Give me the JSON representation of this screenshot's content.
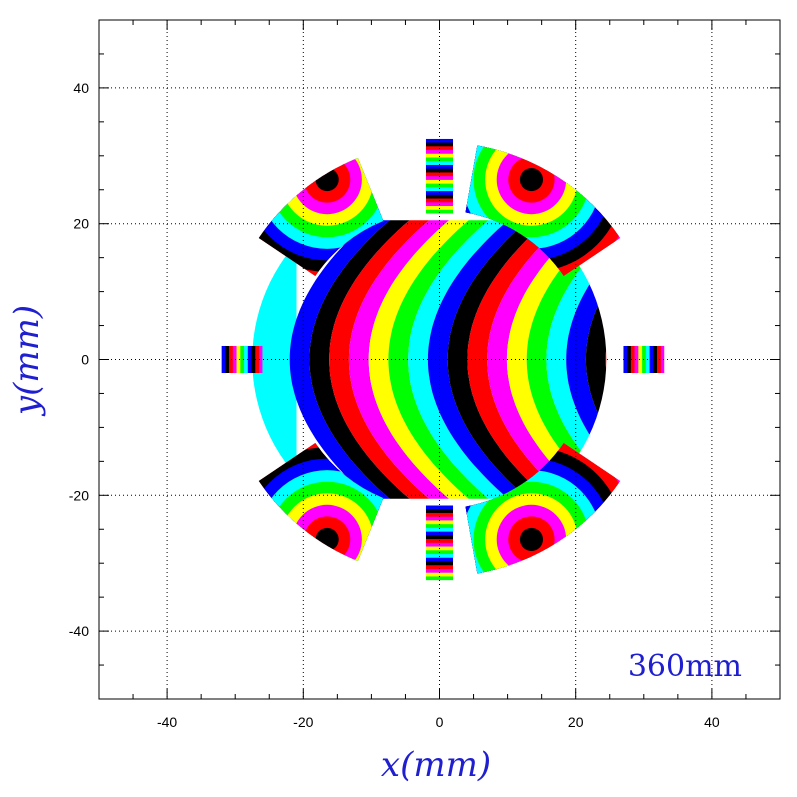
{
  "chart_data": {
    "type": "heatmap",
    "title": "",
    "xlabel": "x(mm)",
    "ylabel": "y(mm)",
    "annotation": "360mm",
    "xlim": [
      -50,
      50
    ],
    "ylim": [
      -50,
      50
    ],
    "x_ticks": [
      -40,
      -20,
      0,
      20,
      40
    ],
    "y_ticks": [
      -40,
      -20,
      0,
      20,
      40
    ],
    "grid": true,
    "grid_style": "dotted",
    "label_color": "#1f1fd0",
    "colormap": [
      "#0000ff",
      "#000000",
      "#ff0000",
      "#ff00ff",
      "#ffff00",
      "#00ff00",
      "#00ffff"
    ],
    "regions": [
      {
        "name": "central-pole",
        "shape": "chord-circle",
        "center": [
          -1.5,
          0
        ],
        "radius": 26,
        "y_range": [
          -20.5,
          20.5
        ],
        "pattern": "parabolic",
        "apex_x": -22,
        "curvature": 0.028,
        "band_width": 2.9
      },
      {
        "name": "sector-upper-left",
        "shape": "annular-sector",
        "center": [
          0,
          0
        ],
        "r_range": [
          22,
          32
        ],
        "angle_range": [
          112,
          146
        ],
        "pattern": "rings",
        "focus": [
          -16.5,
          26.5
        ],
        "band_width": 1.7
      },
      {
        "name": "sector-upper-right",
        "shape": "annular-sector",
        "center": [
          0,
          0
        ],
        "r_range": [
          22,
          32
        ],
        "angle_range": [
          34,
          80
        ],
        "pattern": "rings",
        "focus": [
          13.5,
          26.5
        ],
        "band_width": 1.7
      },
      {
        "name": "sector-lower-left",
        "shape": "annular-sector",
        "center": [
          0,
          0
        ],
        "r_range": [
          22,
          32
        ],
        "angle_range": [
          214,
          248
        ],
        "pattern": "rings",
        "focus": [
          -16.5,
          -26.5
        ],
        "band_width": 1.7
      },
      {
        "name": "sector-lower-right",
        "shape": "annular-sector",
        "center": [
          0,
          0
        ],
        "r_range": [
          22,
          32
        ],
        "angle_range": [
          280,
          326
        ],
        "pattern": "rings",
        "focus": [
          13.5,
          -26.5
        ],
        "band_width": 1.7
      },
      {
        "name": "strip-top",
        "shape": "rect",
        "x_range": [
          -2,
          2
        ],
        "y_range": [
          21.5,
          32.5
        ],
        "pattern": "horizontal-stripes",
        "band_width": 0.55
      },
      {
        "name": "strip-bottom",
        "shape": "rect",
        "x_range": [
          -2,
          2
        ],
        "y_range": [
          -32.5,
          -21.5
        ],
        "pattern": "horizontal-stripes",
        "band_width": 0.55
      },
      {
        "name": "strip-left",
        "shape": "rect",
        "x_range": [
          -32,
          -26
        ],
        "y_range": [
          -2,
          2
        ],
        "pattern": "vertical-stripes",
        "band_width": 0.55
      },
      {
        "name": "strip-right",
        "shape": "rect",
        "x_range": [
          27,
          33
        ],
        "y_range": [
          -2,
          2
        ],
        "pattern": "vertical-stripes",
        "band_width": 0.55
      }
    ]
  }
}
